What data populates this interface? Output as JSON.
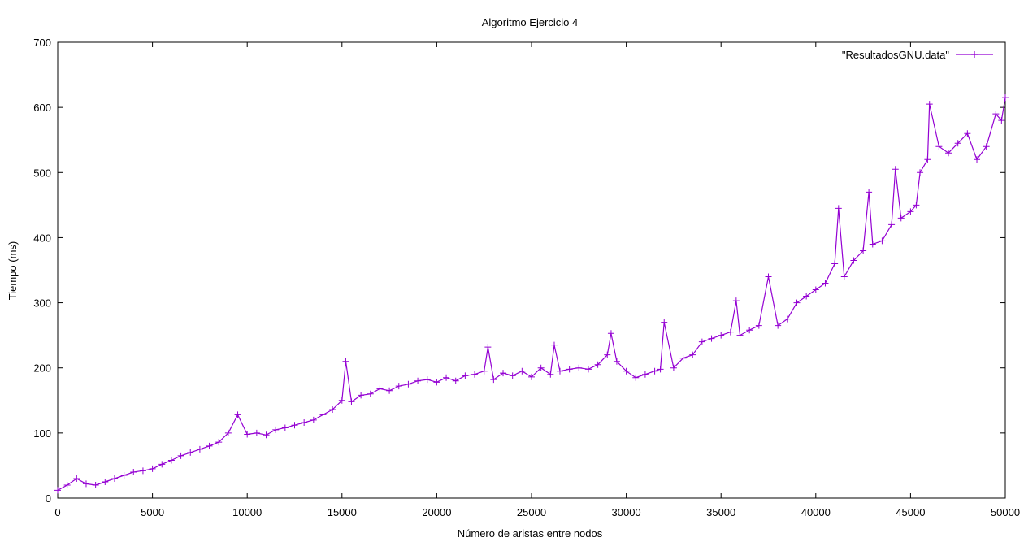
{
  "colors": {
    "series": "#9400d3",
    "axis": "#000000",
    "background": "#ffffff"
  },
  "chart_data": {
    "type": "line",
    "title": "Algoritmo Ejercicio 4",
    "xlabel": "Número de aristas entre nodos",
    "ylabel": "Tiempo (ms)",
    "xlim": [
      0,
      50000
    ],
    "ylim": [
      0,
      700
    ],
    "xticks": [
      0,
      5000,
      10000,
      15000,
      20000,
      25000,
      30000,
      35000,
      40000,
      45000,
      50000
    ],
    "yticks": [
      0,
      100,
      200,
      300,
      400,
      500,
      600,
      700
    ],
    "grid": false,
    "legend_position": "top-right",
    "marker": "plus",
    "series": [
      {
        "name": "\"ResultadosGNU.data\"",
        "x": [
          0,
          500,
          1000,
          1500,
          2000,
          2500,
          3000,
          3500,
          4000,
          4500,
          5000,
          5500,
          6000,
          6500,
          7000,
          7500,
          8000,
          8500,
          9000,
          9500,
          10000,
          10500,
          11000,
          11500,
          12000,
          12500,
          13000,
          13500,
          14000,
          14500,
          15000,
          15200,
          15500,
          16000,
          16500,
          17000,
          17500,
          18000,
          18500,
          19000,
          19500,
          20000,
          20500,
          21000,
          21500,
          22000,
          22500,
          22700,
          23000,
          23500,
          24000,
          24500,
          25000,
          25500,
          26000,
          26200,
          26500,
          27000,
          27500,
          28000,
          28500,
          29000,
          29200,
          29500,
          30000,
          30500,
          31000,
          31500,
          31800,
          32000,
          32500,
          33000,
          33500,
          34000,
          34500,
          35000,
          35500,
          35800,
          36000,
          36500,
          37000,
          37500,
          38000,
          38500,
          39000,
          39500,
          40000,
          40500,
          41000,
          41200,
          41500,
          42000,
          42500,
          42800,
          43000,
          43500,
          44000,
          44200,
          44500,
          45000,
          45300,
          45500,
          45900,
          46000,
          46500,
          47000,
          47500,
          48000,
          48500,
          49000,
          49500,
          49800,
          50000
        ],
        "y": [
          12,
          20,
          30,
          22,
          20,
          25,
          30,
          35,
          40,
          42,
          45,
          52,
          58,
          65,
          70,
          75,
          80,
          86,
          100,
          128,
          98,
          100,
          97,
          105,
          108,
          112,
          116,
          120,
          128,
          136,
          150,
          210,
          148,
          158,
          160,
          168,
          165,
          172,
          175,
          180,
          182,
          178,
          185,
          180,
          188,
          190,
          195,
          232,
          182,
          192,
          188,
          195,
          186,
          200,
          190,
          235,
          195,
          198,
          200,
          198,
          205,
          220,
          253,
          210,
          195,
          185,
          190,
          195,
          198,
          270,
          200,
          215,
          220,
          240,
          245,
          250,
          255,
          303,
          250,
          258,
          265,
          340,
          265,
          275,
          300,
          310,
          320,
          330,
          360,
          445,
          340,
          365,
          380,
          470,
          390,
          395,
          420,
          505,
          430,
          440,
          450,
          500,
          520,
          605,
          540,
          530,
          545,
          560,
          520,
          540,
          590,
          580,
          615
        ]
      }
    ]
  }
}
